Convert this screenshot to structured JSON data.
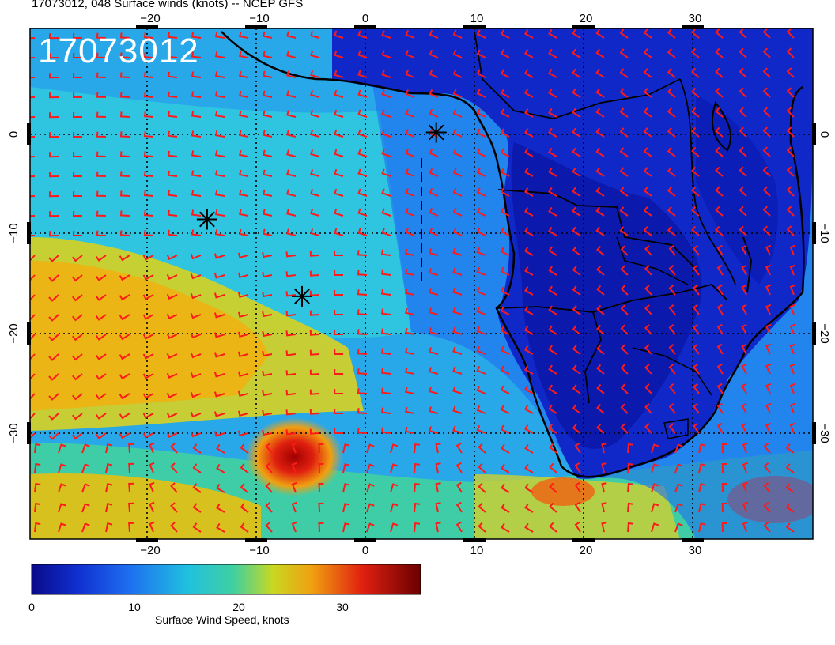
{
  "title": "17073012, 048 Surface winds (knots) -- NCEP GFS",
  "stamp": "17073012",
  "axes": {
    "x_ticks": [
      "−20",
      "−10",
      "0",
      "10",
      "20",
      "30"
    ],
    "y_ticks": [
      "0",
      "−10",
      "−20",
      "−30"
    ]
  },
  "colorbar": {
    "title": "Surface Wind Speed, knots",
    "ticks": [
      "0",
      "10",
      "20",
      "30"
    ],
    "range": [
      0,
      38
    ]
  },
  "colors": {
    "barb": "#ff1a1a",
    "coast": "#000000",
    "low": "#0a0a8a",
    "high": "#6a0000"
  },
  "markers": [
    {
      "name": "storm-marker-1",
      "lon": -14.5,
      "lat": -8.5
    },
    {
      "name": "storm-marker-2",
      "lon": -5.8,
      "lat": -16.2
    },
    {
      "name": "storm-marker-3",
      "lon": 6.5,
      "lat": 0.2
    }
  ]
}
